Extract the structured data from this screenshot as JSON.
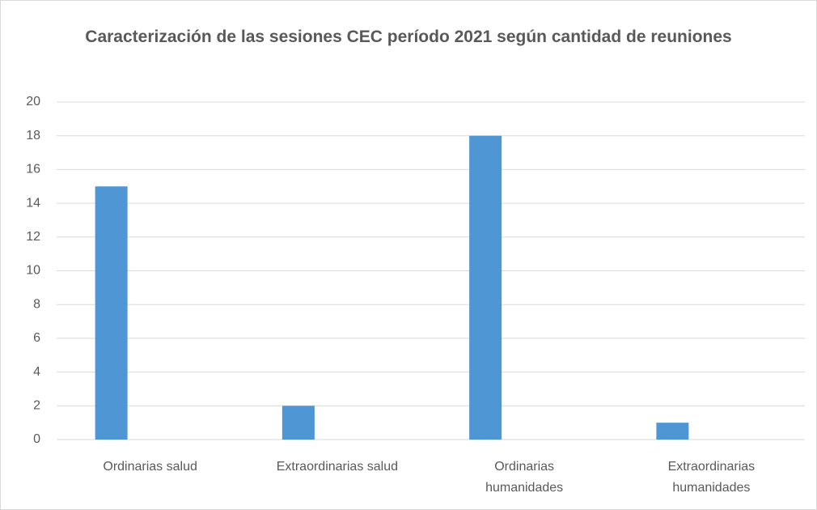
{
  "chart_data": {
    "type": "bar",
    "title": "Caracterización de las sesiones CEC período 2021 según cantidad de reuniones",
    "categories": [
      "Ordinarias salud",
      "Extraordinarias salud",
      "Ordinarias humanidades",
      "Extraordinarias humanidades"
    ],
    "values": [
      15,
      2,
      18,
      1
    ],
    "color": "#4e96d4",
    "ylim": [
      0,
      20
    ],
    "yticks": [
      0,
      2,
      4,
      6,
      8,
      10,
      12,
      14,
      16,
      18,
      20
    ],
    "grid": true
  }
}
